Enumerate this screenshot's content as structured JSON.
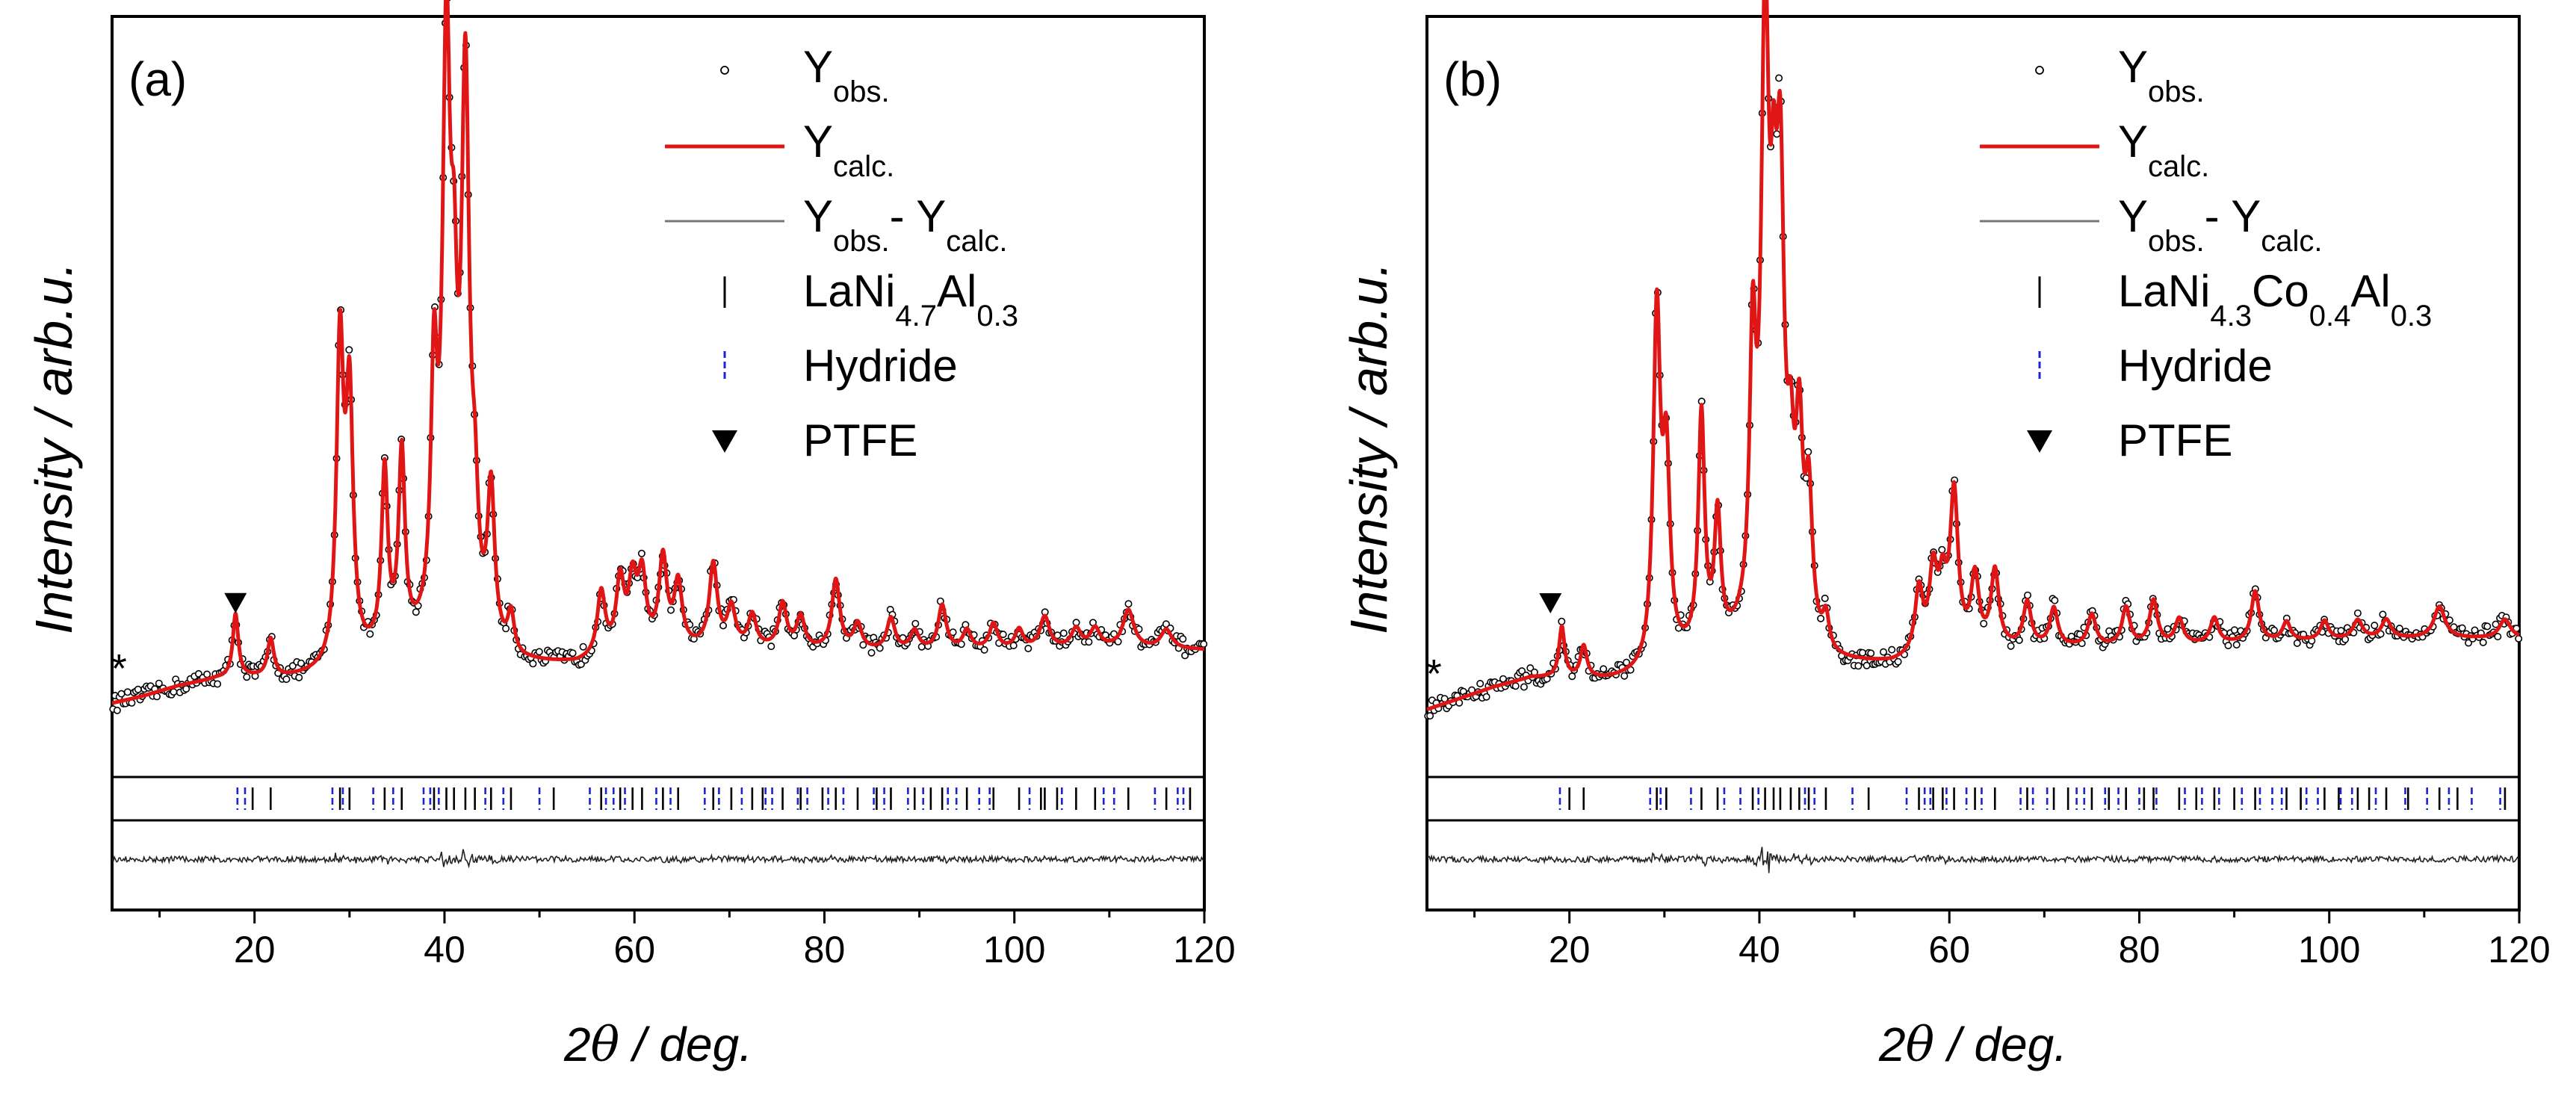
{
  "colors": {
    "calc": "#e01515",
    "diff": "#777777",
    "phase1": "#000000",
    "phase2": "#1a24d0",
    "obs": "#000000"
  },
  "axes": {
    "xlabel_num": "2",
    "xlabel_theta": "θ",
    "xlabel_unit": " / deg.",
    "ylabel": "Intensity / arb.u.",
    "xticks": [
      "20",
      "40",
      "60",
      "80",
      "100",
      "120"
    ]
  },
  "chart_data": [
    {
      "type": "line",
      "panel_label": "(a)",
      "title": "",
      "xlabel": "2θ / deg.",
      "ylabel": "Intensity / arb.u.",
      "xlim": [
        5,
        120
      ],
      "legend_placement": "top-right",
      "legend": {
        "obs": {
          "main": "Y",
          "sub": "obs."
        },
        "calc": {
          "main": "Y",
          "sub": "calc."
        },
        "diff": {
          "main1": "Y",
          "sub1": "obs.",
          "main2": "- Y",
          "sub2": "calc."
        },
        "phase": {
          "parts": [
            [
              "LaNi",
              "4.7"
            ],
            [
              "Al",
              "0.3"
            ]
          ]
        },
        "hydride": {
          "text": "Hydride"
        },
        "ptfe": {
          "text": "PTFE"
        }
      },
      "markers": {
        "star": "*",
        "star_x": 6,
        "ptfe_x": 18.0
      },
      "background": [
        [
          5,
          4.5
        ],
        [
          8,
          5.5
        ],
        [
          12,
          7.2
        ],
        [
          16,
          8.3
        ],
        [
          19,
          8.5
        ],
        [
          23,
          8.3
        ],
        [
          28,
          8.8
        ],
        [
          32,
          11
        ],
        [
          38,
          13
        ],
        [
          44,
          12
        ],
        [
          48,
          10.5
        ],
        [
          54,
          10.5
        ],
        [
          60,
          12.5
        ],
        [
          70,
          13.2
        ],
        [
          80,
          12.8
        ],
        [
          90,
          12.8
        ],
        [
          100,
          13.0
        ],
        [
          110,
          13.2
        ],
        [
          120,
          13.0
        ]
      ],
      "peaks": [
        {
          "pos": 18.0,
          "h": 10,
          "w": 0.35
        },
        {
          "pos": 21.7,
          "h": 6,
          "w": 0.4
        },
        {
          "pos": 29.0,
          "h": 50,
          "w": 0.45
        },
        {
          "pos": 30.0,
          "h": 40,
          "w": 0.45
        },
        {
          "pos": 33.7,
          "h": 28,
          "w": 0.4
        },
        {
          "pos": 35.5,
          "h": 30,
          "w": 0.4
        },
        {
          "pos": 38.9,
          "h": 38,
          "w": 0.4
        },
        {
          "pos": 40.2,
          "h": 90,
          "w": 0.5
        },
        {
          "pos": 41.0,
          "h": 35,
          "w": 0.4
        },
        {
          "pos": 42.2,
          "h": 86,
          "w": 0.5
        },
        {
          "pos": 43.2,
          "h": 15,
          "w": 0.4
        },
        {
          "pos": 44.9,
          "h": 24,
          "w": 0.45
        },
        {
          "pos": 47.0,
          "h": 6,
          "w": 0.4
        },
        {
          "pos": 56.5,
          "h": 10,
          "w": 0.5
        },
        {
          "pos": 58.5,
          "h": 11,
          "w": 0.5
        },
        {
          "pos": 59.8,
          "h": 10,
          "w": 0.5
        },
        {
          "pos": 60.8,
          "h": 11,
          "w": 0.5
        },
        {
          "pos": 63.0,
          "h": 14,
          "w": 0.5
        },
        {
          "pos": 64.6,
          "h": 10,
          "w": 0.5
        },
        {
          "pos": 68.3,
          "h": 13,
          "w": 0.5
        },
        {
          "pos": 70.2,
          "h": 6,
          "w": 0.5
        },
        {
          "pos": 72.4,
          "h": 5,
          "w": 0.5
        },
        {
          "pos": 75.6,
          "h": 7,
          "w": 0.5
        },
        {
          "pos": 77.5,
          "h": 5,
          "w": 0.5
        },
        {
          "pos": 81.2,
          "h": 11,
          "w": 0.5
        },
        {
          "pos": 83.5,
          "h": 4,
          "w": 0.5
        },
        {
          "pos": 87.0,
          "h": 5,
          "w": 0.5
        },
        {
          "pos": 89.5,
          "h": 3,
          "w": 0.5
        },
        {
          "pos": 92.4,
          "h": 7,
          "w": 0.5
        },
        {
          "pos": 95.0,
          "h": 3,
          "w": 0.5
        },
        {
          "pos": 97.8,
          "h": 4,
          "w": 0.5
        },
        {
          "pos": 100.5,
          "h": 3,
          "w": 0.5
        },
        {
          "pos": 103.2,
          "h": 5,
          "w": 0.6
        },
        {
          "pos": 106.5,
          "h": 3,
          "w": 0.6
        },
        {
          "pos": 108.5,
          "h": 3,
          "w": 0.6
        },
        {
          "pos": 112.0,
          "h": 6,
          "w": 0.7
        },
        {
          "pos": 116.0,
          "h": 3,
          "w": 0.7
        }
      ],
      "phase_ticks": [
        19.8,
        21.7,
        29.0,
        30.0,
        33.7,
        35.5,
        38.9,
        40.2,
        41.0,
        42.2,
        43.2,
        44.9,
        47.0,
        51.5,
        56.5,
        58.5,
        59.8,
        60.8,
        63.0,
        64.6,
        68.3,
        70.2,
        72.4,
        73.5,
        75.6,
        77.5,
        79.8,
        81.2,
        83.5,
        85.5,
        87.0,
        89.5,
        91.2,
        92.4,
        95.0,
        97.8,
        100.5,
        102.8,
        103.2,
        104.5,
        106.5,
        108.5,
        112.0,
        116.0,
        118.5
      ],
      "hydride_ticks": [
        18.2,
        19.0,
        28.2,
        29.3,
        32.5,
        34.6,
        37.8,
        38.5,
        39.4,
        44.3,
        46.2,
        50.0,
        55.3,
        57.0,
        57.8,
        59.0,
        62.3,
        63.8,
        67.4,
        68.9,
        71.3,
        73.8,
        74.5,
        77.2,
        78.2,
        80.4,
        82.0,
        85.2,
        86.3,
        88.8,
        90.4,
        93.0,
        93.9,
        96.3,
        97.4,
        101.6,
        105.0,
        109.4,
        110.5,
        114.8,
        117.2,
        117.8
      ]
    },
    {
      "type": "line",
      "panel_label": "(b)",
      "title": "",
      "xlabel": "2θ / deg.",
      "ylabel": "Intensity / arb.u.",
      "xlim": [
        5,
        120
      ],
      "legend_placement": "top-right",
      "legend": {
        "obs": {
          "main": "Y",
          "sub": "obs."
        },
        "calc": {
          "main": "Y",
          "sub": "calc."
        },
        "diff": {
          "main1": "Y",
          "sub1": "obs.",
          "main2": "- Y",
          "sub2": "calc."
        },
        "phase": {
          "parts": [
            [
              "LaNi",
              "4.3"
            ],
            [
              "Co",
              "0.4"
            ],
            [
              "Al",
              "0.3"
            ]
          ]
        },
        "hydride": {
          "text": "Hydride"
        },
        "ptfe": {
          "text": "PTFE"
        }
      },
      "markers": {
        "star": "*",
        "star_x": 6,
        "ptfe_x": 18.0
      },
      "background": [
        [
          5,
          3.5
        ],
        [
          8,
          5.0
        ],
        [
          12,
          7.0
        ],
        [
          16,
          8.5
        ],
        [
          20,
          8.3
        ],
        [
          24,
          8.0
        ],
        [
          28,
          8.5
        ],
        [
          32,
          11
        ],
        [
          38,
          13
        ],
        [
          44,
          12
        ],
        [
          48,
          10.5
        ],
        [
          54,
          10.5
        ],
        [
          60,
          12.5
        ],
        [
          70,
          13.2
        ],
        [
          80,
          13.5
        ],
        [
          90,
          14.0
        ],
        [
          100,
          14.5
        ],
        [
          110,
          14.8
        ],
        [
          120,
          14.8
        ]
      ],
      "peaks": [
        {
          "pos": 19.2,
          "h": 8,
          "w": 0.35
        },
        {
          "pos": 21.5,
          "h": 5,
          "w": 0.4
        },
        {
          "pos": 29.2,
          "h": 55,
          "w": 0.45
        },
        {
          "pos": 30.2,
          "h": 30,
          "w": 0.45
        },
        {
          "pos": 33.9,
          "h": 37,
          "w": 0.4
        },
        {
          "pos": 35.6,
          "h": 20,
          "w": 0.4
        },
        {
          "pos": 39.3,
          "h": 42,
          "w": 0.4
        },
        {
          "pos": 40.6,
          "h": 93,
          "w": 0.5
        },
        {
          "pos": 41.5,
          "h": 40,
          "w": 0.4
        },
        {
          "pos": 42.2,
          "h": 65,
          "w": 0.5
        },
        {
          "pos": 43.3,
          "h": 20,
          "w": 0.4
        },
        {
          "pos": 44.2,
          "h": 30,
          "w": 0.45
        },
        {
          "pos": 45.2,
          "h": 22,
          "w": 0.45
        },
        {
          "pos": 47.0,
          "h": 5,
          "w": 0.4
        },
        {
          "pos": 56.8,
          "h": 10,
          "w": 0.5
        },
        {
          "pos": 58.3,
          "h": 12,
          "w": 0.5
        },
        {
          "pos": 59.3,
          "h": 9,
          "w": 0.5
        },
        {
          "pos": 60.5,
          "h": 24,
          "w": 0.5
        },
        {
          "pos": 62.7,
          "h": 11,
          "w": 0.5
        },
        {
          "pos": 64.8,
          "h": 12,
          "w": 0.5
        },
        {
          "pos": 68.2,
          "h": 7,
          "w": 0.5
        },
        {
          "pos": 71.0,
          "h": 6,
          "w": 0.5
        },
        {
          "pos": 75.0,
          "h": 5,
          "w": 0.5
        },
        {
          "pos": 78.6,
          "h": 6,
          "w": 0.5
        },
        {
          "pos": 81.5,
          "h": 7,
          "w": 0.5
        },
        {
          "pos": 84.2,
          "h": 4,
          "w": 0.5
        },
        {
          "pos": 87.9,
          "h": 4,
          "w": 0.5
        },
        {
          "pos": 92.2,
          "h": 8,
          "w": 0.5
        },
        {
          "pos": 95.5,
          "h": 3,
          "w": 0.5
        },
        {
          "pos": 99.5,
          "h": 3,
          "w": 0.5
        },
        {
          "pos": 103.0,
          "h": 3,
          "w": 0.6
        },
        {
          "pos": 106.0,
          "h": 3,
          "w": 0.6
        },
        {
          "pos": 111.6,
          "h": 5,
          "w": 0.7
        },
        {
          "pos": 118.5,
          "h": 3,
          "w": 0.7
        }
      ],
      "phase_ticks": [
        20.0,
        21.5,
        29.2,
        30.2,
        33.9,
        35.6,
        39.3,
        40.6,
        41.5,
        42.2,
        43.3,
        44.2,
        45.2,
        47.0,
        51.5,
        56.8,
        58.3,
        59.3,
        60.5,
        62.7,
        64.8,
        68.2,
        71.0,
        72.5,
        75.0,
        76.8,
        78.6,
        80.5,
        81.5,
        84.2,
        86.0,
        87.9,
        90.0,
        92.2,
        95.5,
        97.0,
        99.5,
        101.0,
        103.0,
        104.2,
        106.0,
        108.3,
        111.6,
        113.5,
        118.5
      ],
      "hydride_ticks": [
        19.0,
        28.5,
        29.6,
        32.8,
        36.3,
        38.0,
        39.9,
        44.8,
        45.8,
        49.8,
        55.5,
        57.4,
        58.0,
        59.7,
        61.8,
        63.4,
        67.5,
        68.8,
        70.3,
        73.4,
        74.2,
        76.4,
        77.8,
        80.0,
        81.8,
        84.8,
        86.6,
        88.4,
        90.8,
        92.7,
        94.0,
        95.0,
        97.6,
        98.8,
        101.2,
        102.4,
        104.9,
        108.0,
        110.3,
        112.6,
        115.0,
        118.0
      ]
    }
  ]
}
